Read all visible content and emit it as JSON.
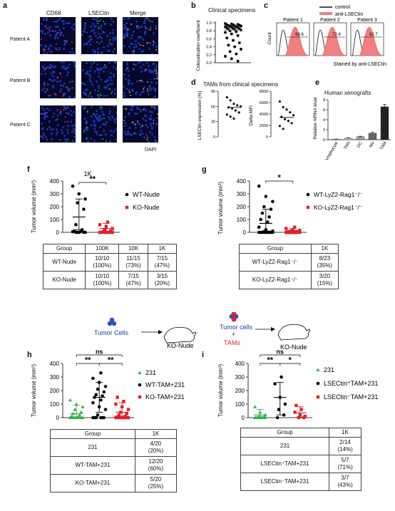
{
  "panel_a": {
    "letter": "a",
    "channels": [
      "CD68",
      "LSECtin",
      "Merge"
    ],
    "channel_colors": [
      "#e3262b",
      "#2aa33b",
      "#f08a1d"
    ],
    "patients": [
      "Patient A",
      "Patient B",
      "Patient C"
    ],
    "dapi": "DAPI",
    "dapi_color": "#1b3fd1"
  },
  "panel_b": {
    "letter": "b",
    "title": "Clinical specimens",
    "ylabel": "Colocalization coefficient",
    "ticks": [
      "1.0",
      "0.8",
      "0.6",
      "0.4",
      "0.2",
      "0.0"
    ],
    "chart_data": {
      "type": "scatter",
      "ylim": [
        0,
        1.0
      ],
      "values": [
        0.98,
        0.97,
        0.96,
        0.95,
        0.95,
        0.94,
        0.93,
        0.92,
        0.92,
        0.91,
        0.9,
        0.9,
        0.89,
        0.88,
        0.87,
        0.86,
        0.85,
        0.84,
        0.83,
        0.82,
        0.8,
        0.78,
        0.76,
        0.72,
        0.68,
        0.62,
        0.56,
        0.5,
        0.44,
        0.4,
        0.34,
        0.28,
        0.22,
        0.16,
        0.1,
        0.04
      ]
    }
  },
  "panel_c": {
    "letter": "c",
    "legend": [
      "control",
      "anti-LSECtin"
    ],
    "legend_colors": [
      "#111111",
      "#f08080"
    ],
    "patients": [
      "Patient 1",
      "Patient 2",
      "Patient 3"
    ],
    "percents": [
      "68.6",
      "72.4",
      "62.7"
    ],
    "ylabel": "Count",
    "xlabel": "Stained by anti-LSECtin"
  },
  "panel_d": {
    "letter": "d",
    "title": "TAMs from clinical specimens",
    "left": {
      "ylabel": "LSECtin expression (%)",
      "ticks": [
        "90",
        "60",
        "30",
        "0"
      ],
      "chart_data": {
        "type": "scatter",
        "ylim": [
          0,
          90
        ],
        "values": [
          78,
          72,
          65,
          62,
          60,
          58,
          56,
          52,
          48,
          44,
          40,
          36
        ],
        "mean": 58
      }
    },
    "right": {
      "ylabel": "Delta MFI",
      "ticks": [
        "8000",
        "6000",
        "4000",
        "2000",
        "0"
      ],
      "chart_data": {
        "type": "scatter",
        "ylim": [
          0,
          8000
        ],
        "values": [
          6200,
          5200,
          4800,
          4300,
          3800,
          3500,
          3100,
          2800,
          2400,
          1900,
          1400
        ],
        "mean": 3400
      }
    }
  },
  "panel_e": {
    "letter": "e",
    "title": "Human xenografts",
    "ylabel": "Relative mRNA level",
    "ticks": [
      "8",
      "6",
      "4",
      "2",
      "0"
    ],
    "chart_data": {
      "type": "bar",
      "categories": [
        "lymphocyte",
        "TAN",
        "DC",
        "Mo",
        "TAM"
      ],
      "values": [
        0.1,
        0.3,
        0.6,
        1.3,
        6.6
      ],
      "errors": [
        0.05,
        0.1,
        0.1,
        0.2,
        0.5
      ],
      "colors": [
        "#d9d9d9",
        "#c8c8c8",
        "#999999",
        "#666666",
        "#222222"
      ],
      "ylim": [
        0,
        8
      ]
    }
  },
  "panel_f": {
    "letter": "f",
    "ylabel": "Tumor volume (mm³)",
    "ticks": [
      "400",
      "300",
      "200",
      "100",
      "0"
    ],
    "sig_top": "1K",
    "sig": "**",
    "legend": [
      "WT-Nude",
      "KO-Nude"
    ],
    "chart_data": {
      "type": "scatter",
      "ylim": [
        0,
        400
      ],
      "series": [
        {
          "name": "WT-Nude",
          "color": "#000000",
          "marker": "circle",
          "mean": 120,
          "sd_low": 20,
          "sd_high": 260,
          "values": [
            360,
            300,
            260,
            230,
            180,
            60,
            20,
            10,
            5,
            5,
            0,
            0,
            0,
            0,
            0
          ]
        },
        {
          "name": "KO-Nude",
          "color": "#e0232a",
          "marker": "square",
          "mean": 30,
          "sd_low": 5,
          "sd_high": 70,
          "values": [
            80,
            60,
            45,
            30,
            20,
            10,
            5,
            0,
            0,
            0,
            0,
            0,
            0,
            0,
            0
          ]
        }
      ]
    },
    "table": {
      "header": [
        "Group",
        "100K",
        "10K",
        "1K"
      ],
      "rows": [
        [
          "WT-Nude",
          "10/10\n(100%)",
          "11/15\n(73%)",
          "7/15\n(47%)"
        ],
        [
          "KO-Nude",
          "10/10\n(100%)",
          "7/15\n(47%)",
          "3/15\n(20%)"
        ]
      ]
    }
  },
  "panel_g": {
    "letter": "g",
    "ylabel": "Tumor volume (mm³)",
    "ticks": [
      "400",
      "300",
      "200",
      "100",
      "0"
    ],
    "sig": "*",
    "legend": [
      "WT-LyZ2-Rag1⁻/⁻",
      "KO-LyZ2-Rag1⁻/⁻"
    ],
    "chart_data": {
      "type": "scatter",
      "ylim": [
        0,
        400
      ],
      "series": [
        {
          "name": "WT-LyZ2-Rag1-/-",
          "color": "#000000",
          "marker": "circle",
          "mean": 70,
          "sd_low": 10,
          "sd_high": 180,
          "values": [
            360,
            280,
            240,
            200,
            180,
            150,
            120,
            100,
            80,
            40,
            20,
            10,
            5,
            0,
            0,
            0,
            0,
            0,
            0,
            0,
            0,
            0,
            0
          ]
        },
        {
          "name": "KO-LyZ2-Rag1-/-",
          "color": "#e0232a",
          "marker": "square",
          "mean": 15,
          "sd_low": 2,
          "sd_high": 30,
          "values": [
            40,
            30,
            20,
            15,
            10,
            5,
            0,
            0,
            0,
            0,
            0,
            0,
            0,
            0,
            0,
            0,
            0,
            0,
            0,
            0
          ]
        }
      ]
    },
    "table": {
      "header": [
        "Group",
        "1K"
      ],
      "rows": [
        [
          "WT-LyZ2-Rag1⁻/⁻",
          "8/23\n(35%)"
        ],
        [
          "KO-LyZ2-Rag1⁻/⁻",
          "3/20\n(15%)"
        ]
      ]
    }
  },
  "schematic_left": {
    "cells": "Tumor Cells",
    "target": "KO-Nude"
  },
  "schematic_right": {
    "cells": "Tumor cells",
    "plus": "+",
    "tams": "TAMs",
    "target": "KO-Nude"
  },
  "panel_h": {
    "letter": "h",
    "ylabel": "Tumor volume (mm³)",
    "ticks": [
      "400",
      "300",
      "200",
      "100",
      "0"
    ],
    "ns": "ns",
    "sig1": "**",
    "sig2": "**",
    "legend": [
      "231",
      "WT-TAM+231",
      "KO-TAM+231"
    ],
    "chart_data": {
      "type": "scatter",
      "ylim": [
        0,
        400
      ],
      "series": [
        {
          "name": "231",
          "color": "#35b24a",
          "marker": "triangle",
          "mean": 30,
          "sd_low": 5,
          "sd_high": 90,
          "values": [
            130,
            100,
            80,
            60,
            40,
            30,
            20,
            10,
            5,
            0,
            0,
            0,
            0,
            0,
            0,
            0,
            0,
            0,
            0,
            0
          ]
        },
        {
          "name": "WT-TAM+231",
          "color": "#000000",
          "marker": "circle",
          "mean": 150,
          "sd_low": 40,
          "sd_high": 260,
          "values": [
            330,
            290,
            260,
            230,
            210,
            190,
            170,
            160,
            150,
            130,
            110,
            80,
            60,
            20,
            0,
            0,
            0,
            0,
            0,
            0
          ]
        },
        {
          "name": "KO-TAM+231",
          "color": "#e0232a",
          "marker": "square",
          "mean": 40,
          "sd_low": 10,
          "sd_high": 110,
          "values": [
            150,
            120,
            100,
            80,
            60,
            40,
            30,
            20,
            10,
            5,
            0,
            0,
            0,
            0,
            0,
            0,
            0,
            0,
            0,
            0
          ]
        }
      ]
    },
    "table": {
      "header": [
        "Group",
        "1K"
      ],
      "rows": [
        [
          "231",
          "4/20\n(20%)"
        ],
        [
          "WT-TAM+231",
          "12/20\n(60%)"
        ],
        [
          "KO-TAM+231",
          "5/20\n(25%)"
        ]
      ]
    }
  },
  "panel_i": {
    "letter": "i",
    "ylabel": "Tumor volume (mm³)",
    "ticks": [
      "400",
      "300",
      "200",
      "100",
      "0"
    ],
    "ns": "ns",
    "sig1": "**",
    "sig2": "*",
    "legend": [
      "231",
      "LSECtin⁺TAM+231",
      "LSECtin⁻TAM+231"
    ],
    "chart_data": {
      "type": "scatter",
      "ylim": [
        0,
        400
      ],
      "series": [
        {
          "name": "231",
          "color": "#35b24a",
          "marker": "triangle",
          "mean": 20,
          "sd_low": 2,
          "sd_high": 60,
          "values": [
            80,
            40,
            20,
            10,
            5,
            0,
            0,
            0,
            0,
            0,
            0,
            0,
            0,
            0
          ]
        },
        {
          "name": "LSECtin+TAM+231",
          "color": "#000000",
          "marker": "circle",
          "mean": 150,
          "sd_low": 20,
          "sd_high": 260,
          "values": [
            300,
            250,
            150,
            100,
            60,
            20,
            0
          ]
        },
        {
          "name": "LSECtin-TAM+231",
          "color": "#e0232a",
          "marker": "square",
          "mean": 35,
          "sd_low": 5,
          "sd_high": 80,
          "values": [
            90,
            60,
            40,
            20,
            10,
            0,
            0
          ]
        }
      ]
    },
    "table": {
      "header": [
        "Group",
        "1K"
      ],
      "rows": [
        [
          "231",
          "2/14\n(14%)"
        ],
        [
          "LSECtin⁺TAM+231",
          "5/7\n(71%)"
        ],
        [
          "LSECtin⁻TAM+231",
          "3/7\n(43%)"
        ]
      ]
    }
  }
}
